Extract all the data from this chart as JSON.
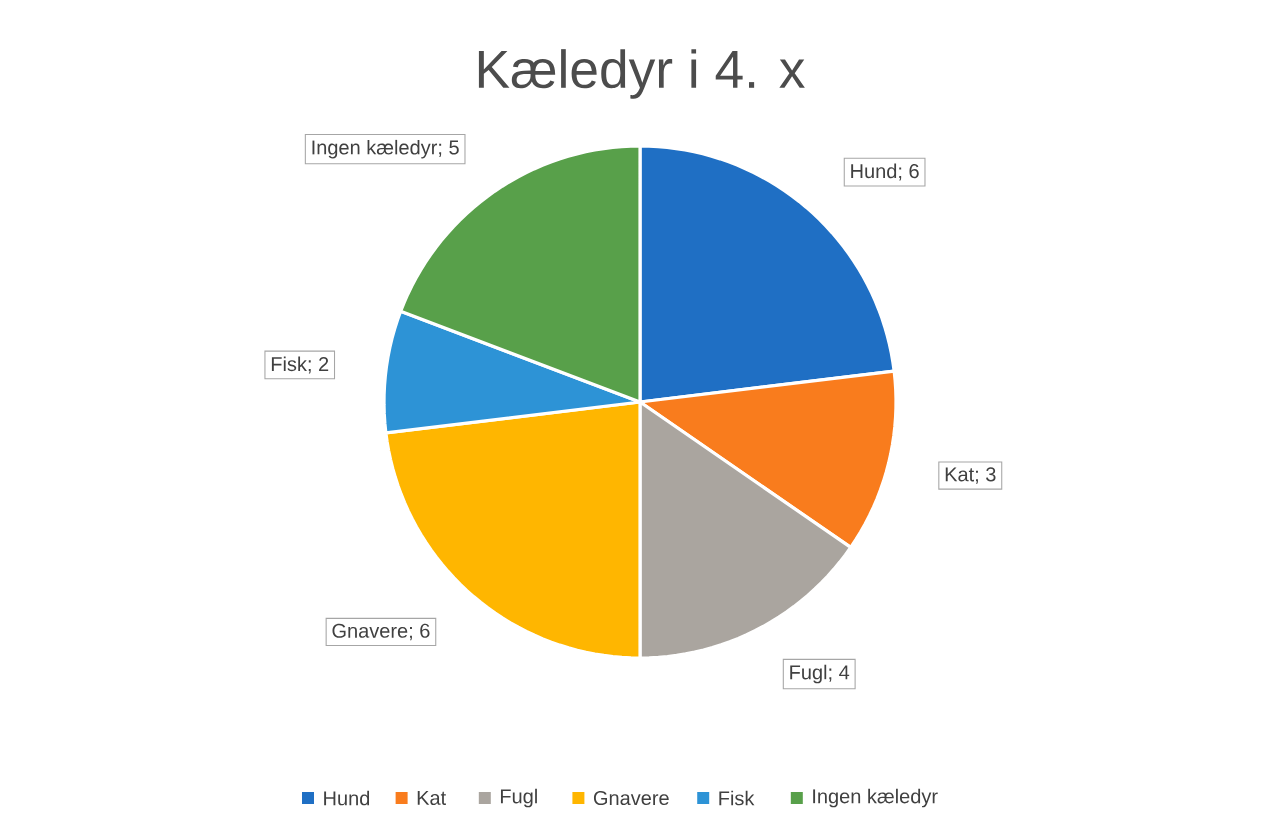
{
  "chart_data": {
    "type": "pie",
    "title": "Kæledyr i 4. x",
    "categories": [
      "Hund",
      "Kat",
      "Fugl",
      "Gnavere",
      "Fisk",
      "Ingen kæledyr"
    ],
    "values": [
      6,
      3,
      4,
      6,
      2,
      5
    ],
    "colors": [
      "#1f6fc4",
      "#f97c1d",
      "#aaa59f",
      "#ffb600",
      "#2d93d6",
      "#58a04a"
    ],
    "value_labels": [
      "Hund; 6",
      "Kat; 3",
      "Fugl; 4",
      "Gnavere; 6",
      "Fisk; 2",
      "Ingen kæledyr; 5"
    ],
    "legend": "bottom"
  }
}
